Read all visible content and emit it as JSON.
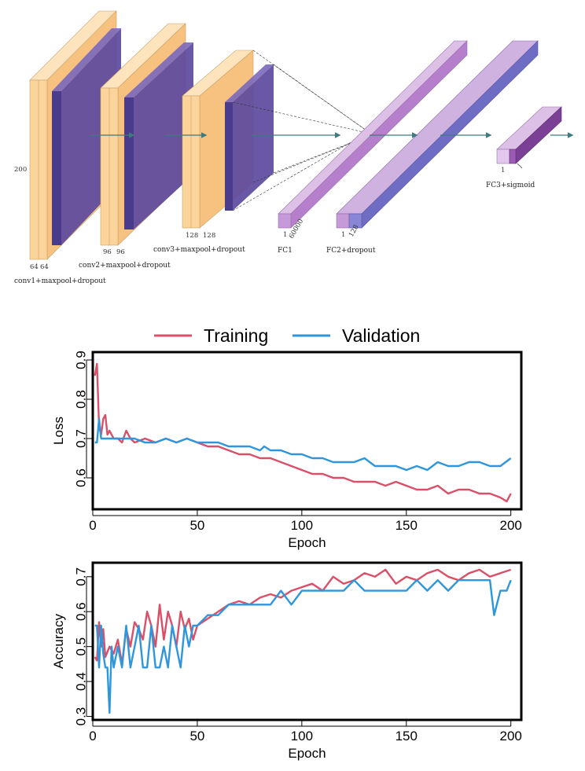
{
  "architecture": {
    "layers": [
      {
        "label": "conv1+maxpool+dropout",
        "dims": [
          "200",
          "64",
          "64"
        ]
      },
      {
        "label": "conv2+maxpool+dropout",
        "dims": [
          "96",
          "96"
        ]
      },
      {
        "label": "conv3+maxpool+dropout",
        "dims": [
          "128",
          "128"
        ]
      },
      {
        "label": "FC1",
        "dims": [
          "1",
          "60000"
        ]
      },
      {
        "label": "FC2+dropout",
        "dims": [
          "1",
          "128"
        ]
      },
      {
        "label": "FC3+sigmoid",
        "dims": [
          "1"
        ]
      }
    ],
    "colors": {
      "conv": "#f7c27f",
      "conv_light": "#fde4bd",
      "pool": "#5b4a9e",
      "fc": "#c69ad6",
      "fc_dark": "#7c3f96",
      "arrow": "#3f7a7d"
    }
  },
  "chart_data": [
    {
      "type": "line",
      "xlabel": "Epoch",
      "ylabel": "Loss",
      "xlim": [
        0,
        205
      ],
      "ylim": [
        0.52,
        0.92
      ],
      "xticks": [
        0,
        50,
        100,
        150,
        200
      ],
      "yticks": [
        0.6,
        0.7,
        0.8,
        0.9
      ],
      "legend": {
        "position": "top",
        "entries": [
          "Training",
          "Validation"
        ]
      },
      "series": [
        {
          "name": "Training",
          "color": "#d95068",
          "x": [
            1,
            2,
            3,
            4,
            5,
            6,
            7,
            8,
            10,
            12,
            14,
            16,
            18,
            20,
            25,
            30,
            35,
            40,
            45,
            50,
            55,
            60,
            65,
            70,
            75,
            80,
            85,
            90,
            95,
            100,
            105,
            110,
            115,
            120,
            125,
            130,
            135,
            140,
            145,
            150,
            155,
            160,
            165,
            170,
            175,
            180,
            185,
            190,
            195,
            198,
            200
          ],
          "y": [
            0.86,
            0.89,
            0.73,
            0.71,
            0.75,
            0.76,
            0.71,
            0.72,
            0.7,
            0.7,
            0.69,
            0.72,
            0.7,
            0.69,
            0.7,
            0.69,
            0.7,
            0.69,
            0.7,
            0.69,
            0.68,
            0.68,
            0.67,
            0.66,
            0.66,
            0.65,
            0.65,
            0.64,
            0.63,
            0.62,
            0.61,
            0.61,
            0.6,
            0.6,
            0.59,
            0.59,
            0.59,
            0.58,
            0.59,
            0.58,
            0.57,
            0.57,
            0.58,
            0.56,
            0.57,
            0.57,
            0.56,
            0.56,
            0.55,
            0.54,
            0.56
          ]
        },
        {
          "name": "Validation",
          "color": "#2f96db",
          "x": [
            1,
            2,
            3,
            4,
            5,
            6,
            8,
            10,
            15,
            20,
            25,
            30,
            35,
            40,
            45,
            50,
            55,
            60,
            65,
            70,
            75,
            80,
            82,
            85,
            90,
            95,
            100,
            105,
            110,
            115,
            120,
            125,
            130,
            135,
            140,
            145,
            150,
            155,
            160,
            165,
            170,
            175,
            180,
            185,
            190,
            195,
            200
          ],
          "y": [
            0.69,
            0.69,
            0.75,
            0.7,
            0.7,
            0.7,
            0.7,
            0.7,
            0.7,
            0.7,
            0.69,
            0.69,
            0.7,
            0.69,
            0.7,
            0.69,
            0.69,
            0.69,
            0.68,
            0.68,
            0.68,
            0.67,
            0.68,
            0.67,
            0.67,
            0.66,
            0.66,
            0.65,
            0.65,
            0.64,
            0.64,
            0.64,
            0.65,
            0.63,
            0.63,
            0.63,
            0.62,
            0.63,
            0.62,
            0.64,
            0.63,
            0.63,
            0.64,
            0.64,
            0.63,
            0.63,
            0.65
          ]
        }
      ]
    },
    {
      "type": "line",
      "xlabel": "Epoch",
      "ylabel": "Accuracy",
      "xlim": [
        0,
        205
      ],
      "ylim": [
        0.29,
        0.74
      ],
      "xticks": [
        0,
        50,
        100,
        150,
        200
      ],
      "yticks": [
        0.3,
        0.4,
        0.5,
        0.6,
        0.7
      ],
      "series": [
        {
          "name": "Training",
          "color": "#d95068",
          "x": [
            1,
            2,
            3,
            4,
            5,
            6,
            8,
            10,
            12,
            14,
            16,
            18,
            20,
            22,
            24,
            26,
            28,
            30,
            32,
            34,
            36,
            38,
            40,
            42,
            44,
            46,
            48,
            50,
            55,
            60,
            65,
            70,
            75,
            80,
            85,
            90,
            95,
            100,
            105,
            110,
            115,
            120,
            125,
            130,
            135,
            140,
            145,
            150,
            155,
            160,
            165,
            170,
            175,
            180,
            185,
            190,
            195,
            200
          ],
          "y": [
            0.47,
            0.46,
            0.57,
            0.5,
            0.55,
            0.47,
            0.5,
            0.48,
            0.52,
            0.45,
            0.55,
            0.5,
            0.57,
            0.55,
            0.52,
            0.6,
            0.56,
            0.5,
            0.62,
            0.52,
            0.6,
            0.56,
            0.5,
            0.6,
            0.55,
            0.58,
            0.52,
            0.56,
            0.58,
            0.6,
            0.62,
            0.63,
            0.62,
            0.64,
            0.65,
            0.64,
            0.66,
            0.67,
            0.68,
            0.66,
            0.7,
            0.68,
            0.69,
            0.71,
            0.7,
            0.72,
            0.68,
            0.7,
            0.69,
            0.71,
            0.72,
            0.7,
            0.69,
            0.71,
            0.72,
            0.7,
            0.71,
            0.72
          ]
        },
        {
          "name": "Validation",
          "color": "#2f96db",
          "x": [
            1,
            2,
            3,
            4,
            5,
            6,
            7,
            8,
            9,
            10,
            12,
            14,
            16,
            18,
            20,
            22,
            24,
            26,
            28,
            30,
            32,
            34,
            36,
            38,
            40,
            42,
            44,
            46,
            48,
            50,
            55,
            60,
            65,
            70,
            75,
            80,
            85,
            90,
            95,
            100,
            105,
            110,
            115,
            120,
            125,
            130,
            135,
            140,
            145,
            150,
            155,
            160,
            165,
            170,
            175,
            180,
            185,
            190,
            192,
            195,
            198,
            200
          ],
          "y": [
            0.56,
            0.56,
            0.44,
            0.56,
            0.48,
            0.44,
            0.44,
            0.31,
            0.5,
            0.44,
            0.5,
            0.44,
            0.56,
            0.44,
            0.5,
            0.56,
            0.44,
            0.44,
            0.56,
            0.44,
            0.44,
            0.5,
            0.44,
            0.56,
            0.5,
            0.44,
            0.56,
            0.5,
            0.56,
            0.56,
            0.59,
            0.59,
            0.62,
            0.62,
            0.62,
            0.62,
            0.62,
            0.66,
            0.62,
            0.66,
            0.66,
            0.66,
            0.66,
            0.66,
            0.69,
            0.66,
            0.66,
            0.66,
            0.66,
            0.66,
            0.69,
            0.66,
            0.69,
            0.66,
            0.69,
            0.69,
            0.69,
            0.69,
            0.59,
            0.66,
            0.66,
            0.69
          ]
        }
      ]
    }
  ]
}
